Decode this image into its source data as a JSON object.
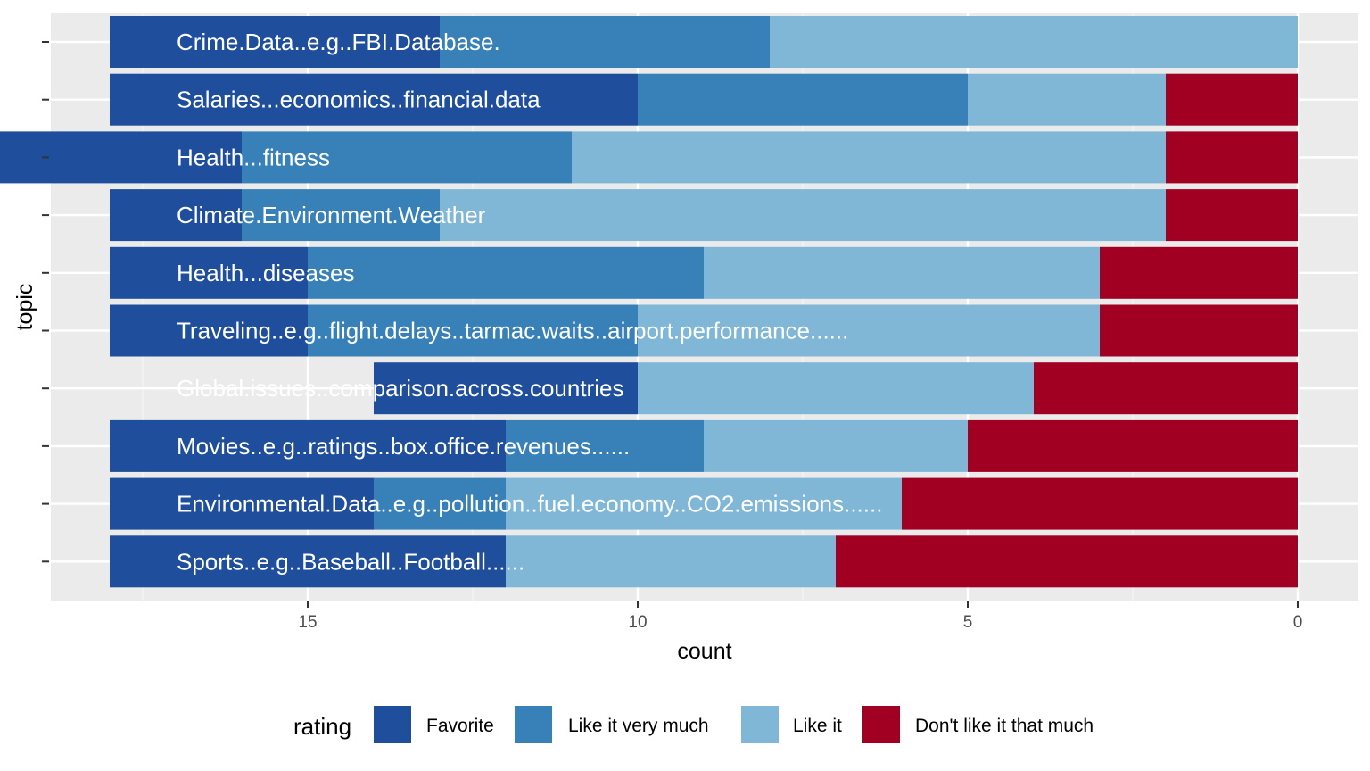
{
  "chart_data": {
    "type": "bar",
    "orientation": "horizontal",
    "stacked": true,
    "x_reversed": true,
    "xlabel": "count",
    "ylabel": "topic",
    "xlim": [
      0,
      18
    ],
    "x_ticks": [
      15,
      10,
      5,
      0
    ],
    "grid": true,
    "legend_position": "bottom",
    "legend_title": "rating",
    "series": [
      {
        "name": "Favorite",
        "color": "#1f4e9c",
        "values": [
          5,
          8,
          4,
          2,
          3,
          3,
          4,
          6,
          4,
          6
        ]
      },
      {
        "name": "Like it very much",
        "color": "#3881b8",
        "values": [
          5,
          5,
          5,
          3,
          6,
          5,
          0,
          3,
          2,
          0
        ]
      },
      {
        "name": "Like it",
        "color": "#80b6d6",
        "values": [
          8,
          3,
          9,
          11,
          6,
          7,
          6,
          4,
          6,
          5
        ]
      },
      {
        "name": "Don't like it that much",
        "color": "#a10022",
        "values": [
          0,
          2,
          2,
          2,
          3,
          3,
          4,
          5,
          6,
          7
        ]
      }
    ],
    "categories": [
      "Crime.Data..e.g..FBI.Database.",
      "Salaries...economics..financial.data",
      "Health...fitness",
      "Climate.Environment.Weather",
      "Health...diseases",
      "Traveling..e.g..flight.delays..tarmac.waits..airport.performance......",
      "Global.issues..comparison.across.countries",
      "Movies..e.g..ratings..box.office.revenues......",
      "Environmental.Data..e.g..pollution..fuel.economy..CO2.emissions......",
      "Sports..e.g..Baseball..Football......"
    ]
  }
}
